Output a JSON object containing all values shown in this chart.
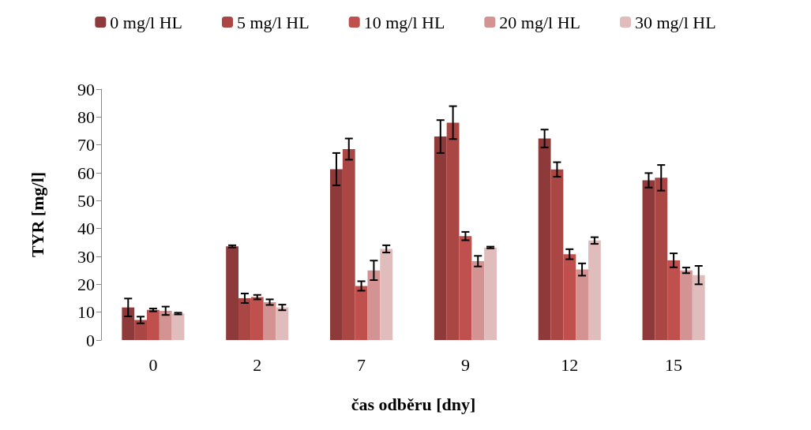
{
  "chart_data": {
    "type": "bar",
    "xlabel": "čas odběru [dny]",
    "ylabel": "TYR [mg/l]",
    "categories": [
      "0",
      "2",
      "7",
      "9",
      "12",
      "15"
    ],
    "series": [
      {
        "name": "0 mg/l HL",
        "color": "#8e3a3a",
        "values": [
          11.7,
          33.6,
          61.3,
          73,
          72.3,
          57.3
        ],
        "errors": [
          3.2,
          0.4,
          5.8,
          5.9,
          3.2,
          2.6
        ]
      },
      {
        "name": "5 mg/l HL",
        "color": "#aa4644",
        "values": [
          7.2,
          15,
          68.5,
          78,
          61.2,
          58.2
        ],
        "errors": [
          1.2,
          1.7,
          3.8,
          5.9,
          2.6,
          4.6
        ]
      },
      {
        "name": "10 mg/l HL",
        "color": "#c0504d",
        "values": [
          10.8,
          15.4,
          19.4,
          37.3,
          30.8,
          28.6
        ],
        "errors": [
          0.5,
          0.8,
          1.7,
          1.5,
          1.8,
          2.5
        ]
      },
      {
        "name": "20 mg/l HL",
        "color": "#d39392",
        "values": [
          10.5,
          13.6,
          25,
          28.3,
          25.3,
          25
        ],
        "errors": [
          1.5,
          1,
          3.5,
          1.9,
          2.2,
          1
        ]
      },
      {
        "name": "30 mg/l HL",
        "color": "#e1bcbc",
        "values": [
          9.5,
          11.7,
          32.7,
          33.2,
          35.7,
          23.3
        ],
        "errors": [
          0.3,
          1,
          1.3,
          0.3,
          1.2,
          3.3
        ]
      }
    ],
    "ylim": [
      0,
      90
    ],
    "yticks": [
      0,
      10,
      20,
      30,
      40,
      50,
      60,
      70,
      80,
      90
    ],
    "grid": false,
    "legend": "top"
  }
}
